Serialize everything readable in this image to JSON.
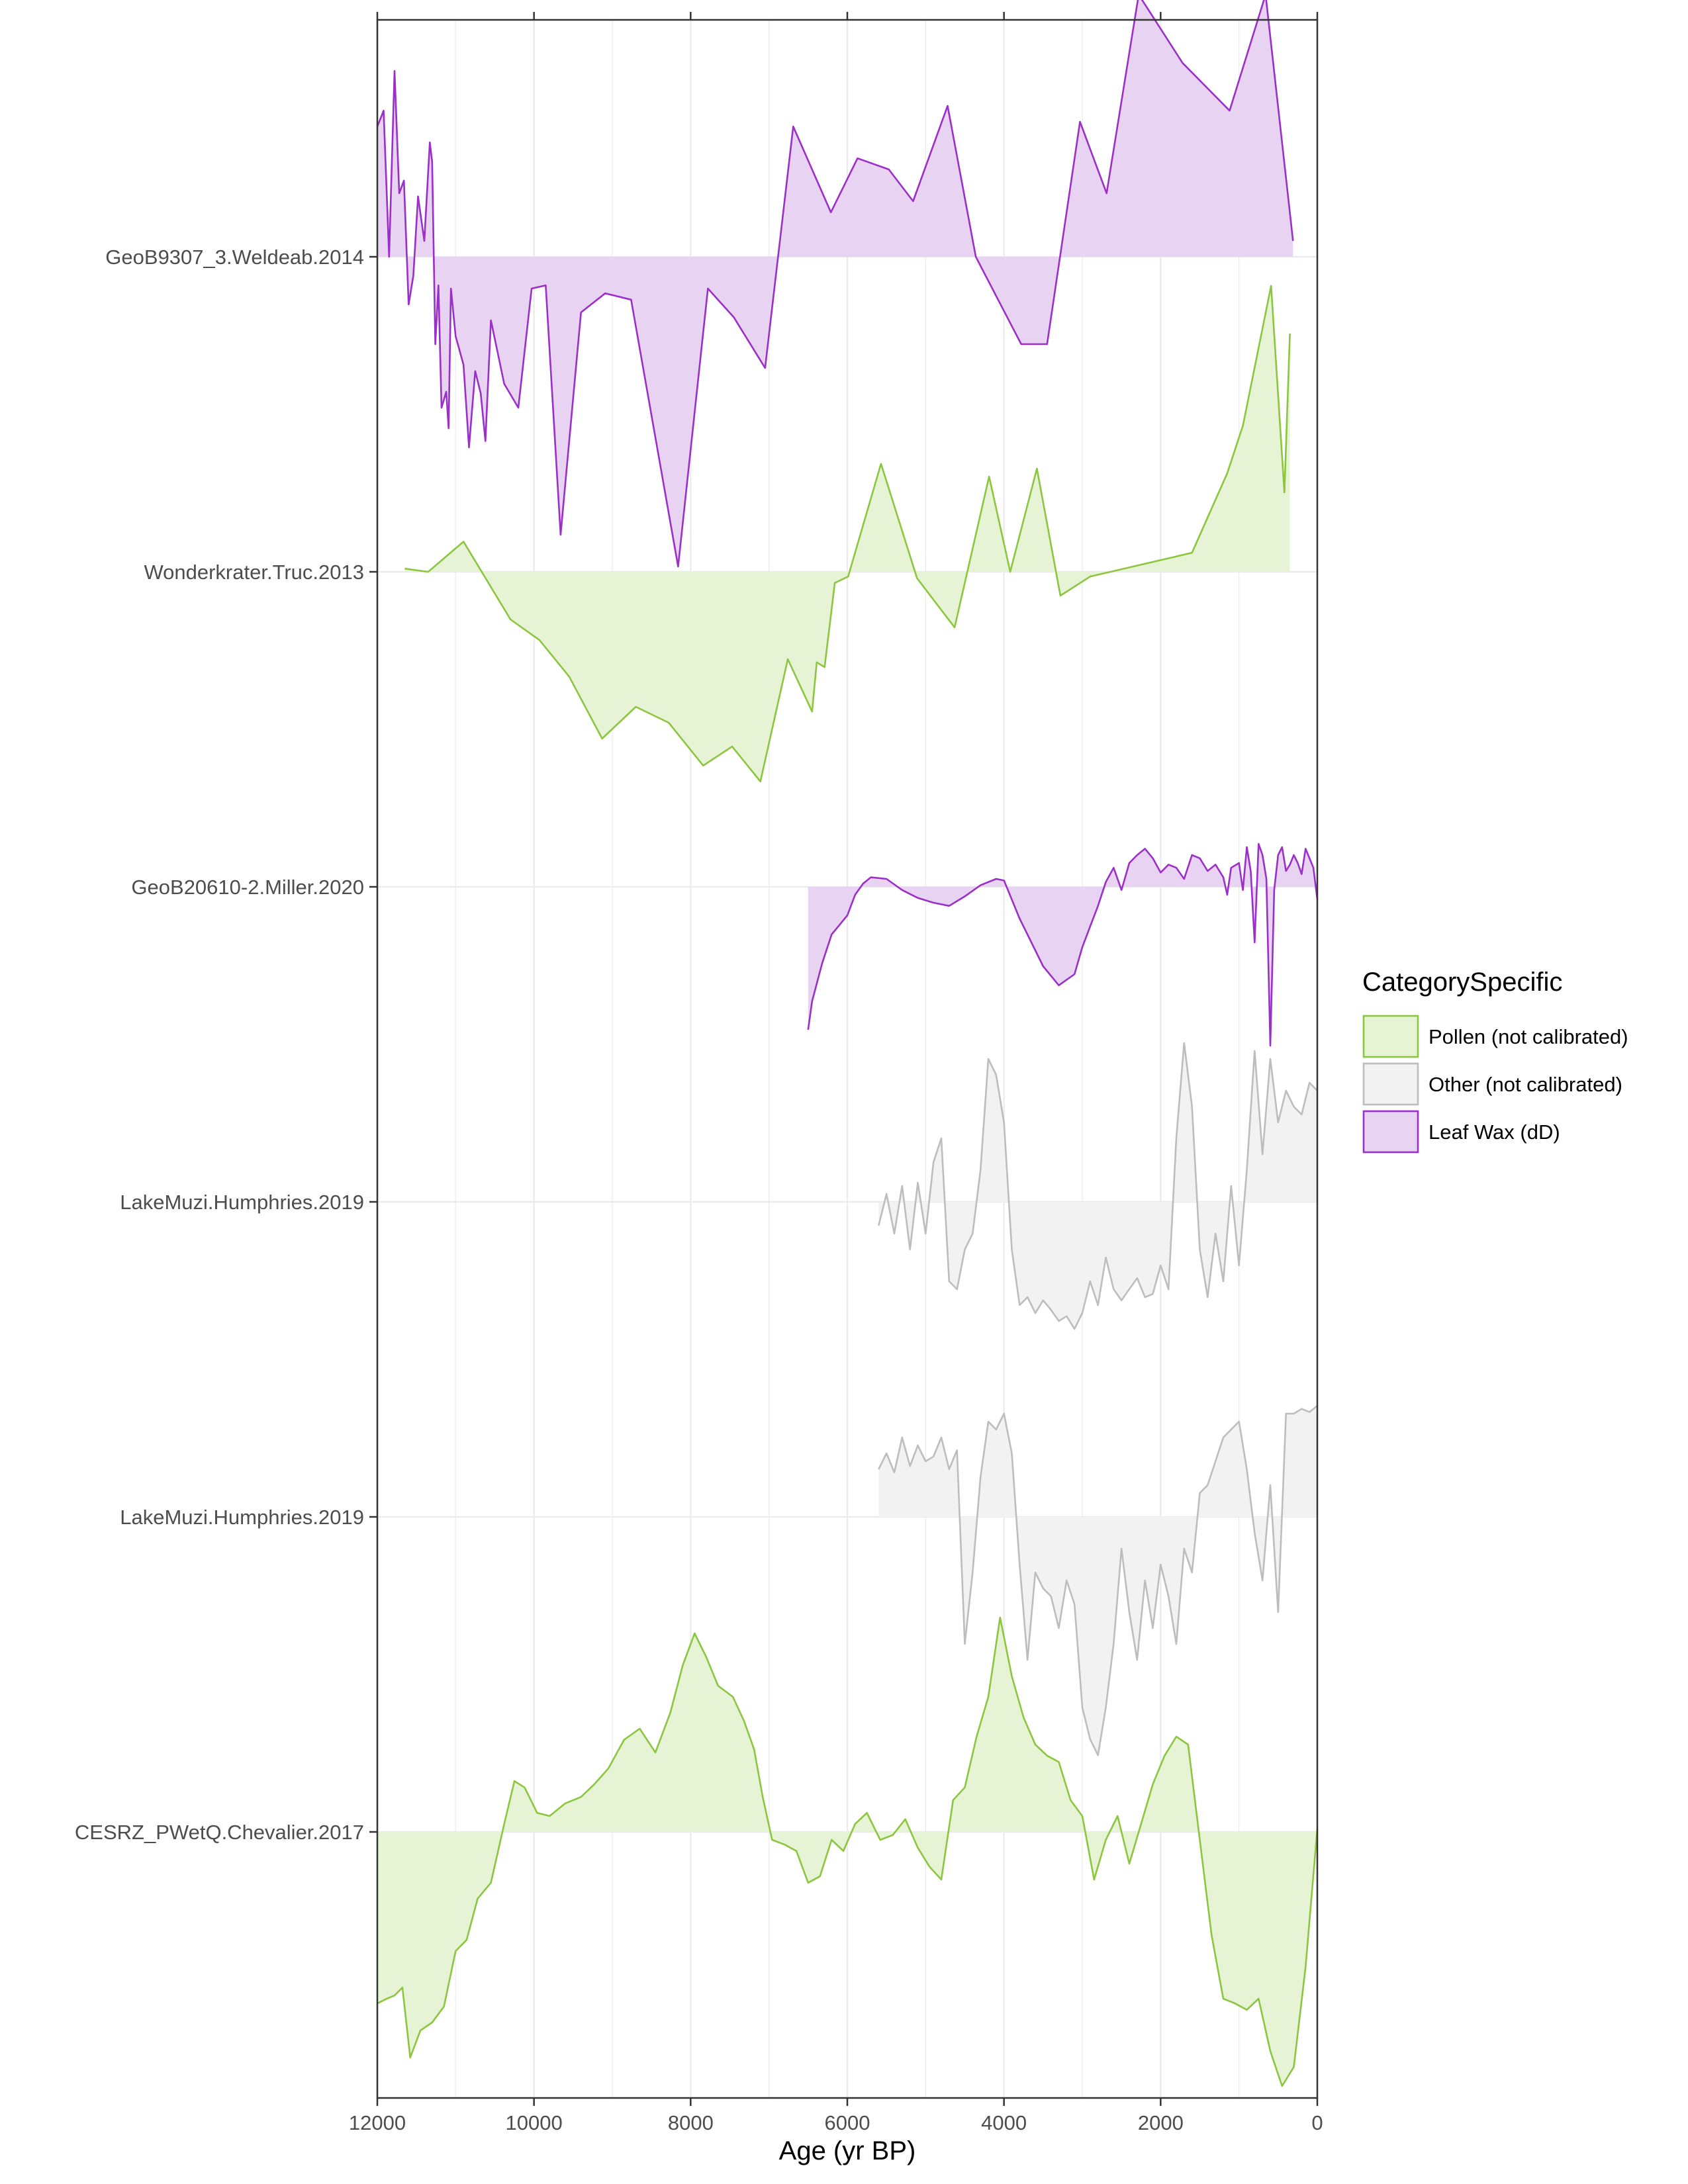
{
  "chart_data": {
    "type": "area",
    "xlabel": "Age (yr BP)",
    "xlim": [
      12000,
      0
    ],
    "x_ticks": [
      12000,
      10000,
      8000,
      6000,
      4000,
      2000,
      0
    ],
    "x_tick_labels": [
      "12000",
      "10000",
      "8000",
      "6000",
      "4000",
      "2000",
      "0"
    ],
    "grid": true,
    "legend": {
      "title": "CategorySpecific",
      "position": "right",
      "items": [
        {
          "label": "Pollen (not calibrated)",
          "key": "pollen"
        },
        {
          "label": "Other (not calibrated)",
          "key": "other"
        },
        {
          "label": "Leaf Wax (dD)",
          "key": "leafwax"
        }
      ]
    },
    "colors": {
      "pollen": {
        "line": "#8cc63f",
        "fill": "#e6f3d4"
      },
      "other": {
        "line": "#bdbdbd",
        "fill": "#f2f2f2"
      },
      "leafwax": {
        "line": "#9b2fc9",
        "fill": "#e8d3f3"
      }
    },
    "series": [
      {
        "name": "GeoB9307_3.Weldeab.2014",
        "category": "leafwax",
        "age": [
          12000,
          11920,
          11850,
          11780,
          11720,
          11660,
          11600,
          11540,
          11480,
          11400,
          11330,
          11300,
          11260,
          11220,
          11180,
          11120,
          11090,
          11060,
          11000,
          10900,
          10830,
          10750,
          10680,
          10620,
          10550,
          10380,
          10200,
          10030,
          9850,
          9660,
          9400,
          9090,
          8760,
          8160,
          7780,
          7450,
          7050,
          6690,
          6210,
          5870,
          5470,
          5160,
          4720,
          4360,
          3780,
          3450,
          3030,
          2690,
          2280,
          1720,
          1120,
          660,
          310
        ],
        "value": [
          0.82,
          0.92,
          0.0,
          1.17,
          0.4,
          0.48,
          -0.3,
          -0.12,
          0.38,
          0.1,
          0.72,
          0.6,
          -0.55,
          -0.18,
          -0.95,
          -0.85,
          -1.08,
          -0.2,
          -0.5,
          -0.68,
          -1.2,
          -0.72,
          -0.86,
          -1.16,
          -0.4,
          -0.8,
          -0.95,
          -0.2,
          -0.18,
          -1.75,
          -0.35,
          -0.23,
          -0.27,
          -1.95,
          -0.2,
          -0.38,
          -0.7,
          0.82,
          0.28,
          0.62,
          0.55,
          0.35,
          0.95,
          0.0,
          -0.55,
          -0.55,
          0.85,
          0.4,
          1.65,
          1.22,
          0.92,
          1.65,
          0.1
        ]
      },
      {
        "name": "Wonderkrater.Truc.2013",
        "category": "pollen",
        "age": [
          11650,
          11350,
          10900,
          10300,
          9930,
          9550,
          9130,
          8700,
          8280,
          7840,
          7470,
          7110,
          6760,
          6450,
          6390,
          6290,
          6160,
          5990,
          5570,
          5110,
          4630,
          4190,
          3920,
          3580,
          3280,
          2900,
          1600,
          1150,
          950,
          590,
          420,
          350
        ],
        "value": [
          0.02,
          0.0,
          0.19,
          -0.3,
          -0.43,
          -0.66,
          -1.05,
          -0.85,
          -0.95,
          -1.22,
          -1.1,
          -1.32,
          -0.55,
          -0.88,
          -0.57,
          -0.6,
          -0.07,
          -0.03,
          0.68,
          -0.04,
          -0.35,
          0.6,
          0.0,
          0.65,
          -0.15,
          -0.03,
          0.12,
          0.62,
          0.92,
          1.8,
          0.5,
          1.5
        ]
      },
      {
        "name": "GeoB20610-2.Miller.2020",
        "category": "leafwax",
        "age": [
          6500,
          6450,
          6320,
          6200,
          6000,
          5900,
          5800,
          5700,
          5500,
          5300,
          5100,
          4900,
          4700,
          4500,
          4300,
          4100,
          4000,
          3900,
          3800,
          3700,
          3500,
          3300,
          3100,
          3000,
          2900,
          2800,
          2700,
          2600,
          2500,
          2400,
          2300,
          2200,
          2100,
          2000,
          1900,
          1800,
          1700,
          1600,
          1500,
          1400,
          1300,
          1200,
          1150,
          1100,
          1000,
          950,
          900,
          850,
          800,
          750,
          700,
          650,
          600,
          550,
          500,
          450,
          400,
          350,
          300,
          250,
          200,
          150,
          100,
          50,
          0
        ],
        "value": [
          -0.9,
          -0.72,
          -0.48,
          -0.3,
          -0.18,
          -0.05,
          0.02,
          0.06,
          0.05,
          -0.02,
          -0.07,
          -0.1,
          -0.12,
          -0.06,
          0.01,
          0.05,
          0.04,
          -0.08,
          -0.2,
          -0.3,
          -0.5,
          -0.62,
          -0.55,
          -0.38,
          -0.25,
          -0.12,
          0.03,
          0.12,
          -0.02,
          0.15,
          0.2,
          0.24,
          0.18,
          0.09,
          0.14,
          0.12,
          0.05,
          0.2,
          0.18,
          0.1,
          0.14,
          0.06,
          -0.05,
          0.12,
          0.15,
          -0.02,
          0.25,
          0.1,
          -0.35,
          0.27,
          0.2,
          0.05,
          -1.0,
          -0.02,
          0.2,
          0.25,
          0.1,
          0.14,
          0.2,
          0.15,
          0.08,
          0.24,
          0.18,
          0.12,
          -0.08
        ]
      },
      {
        "name": "LakeMuzi.Humphries.2019",
        "category": "other",
        "age": [
          5600,
          5500,
          5400,
          5300,
          5200,
          5100,
          5000,
          4900,
          4800,
          4700,
          4600,
          4500,
          4400,
          4300,
          4200,
          4100,
          4000,
          3900,
          3800,
          3700,
          3600,
          3500,
          3400,
          3300,
          3200,
          3100,
          3000,
          2900,
          2800,
          2700,
          2600,
          2500,
          2400,
          2300,
          2200,
          2100,
          2000,
          1900,
          1800,
          1700,
          1600,
          1500,
          1400,
          1300,
          1200,
          1100,
          1000,
          900,
          800,
          700,
          600,
          500,
          400,
          300,
          200,
          100,
          0
        ],
        "value": [
          -0.15,
          0.05,
          -0.2,
          0.1,
          -0.3,
          0.12,
          -0.2,
          0.25,
          0.4,
          -0.5,
          -0.55,
          -0.3,
          -0.2,
          0.2,
          0.9,
          0.8,
          0.5,
          -0.3,
          -0.65,
          -0.6,
          -0.7,
          -0.62,
          -0.68,
          -0.75,
          -0.72,
          -0.8,
          -0.7,
          -0.5,
          -0.65,
          -0.35,
          -0.55,
          -0.62,
          -0.55,
          -0.48,
          -0.6,
          -0.58,
          -0.4,
          -0.55,
          0.4,
          1.0,
          0.6,
          -0.3,
          -0.6,
          -0.2,
          -0.5,
          0.1,
          -0.4,
          0.2,
          0.95,
          0.3,
          0.9,
          0.5,
          0.7,
          0.6,
          0.55,
          0.75,
          0.7
        ]
      },
      {
        "name": "LakeMuzi.Humphries.2019",
        "category": "other",
        "age": [
          5600,
          5500,
          5400,
          5300,
          5200,
          5100,
          5000,
          4900,
          4800,
          4700,
          4600,
          4500,
          4400,
          4300,
          4200,
          4100,
          4000,
          3900,
          3800,
          3700,
          3600,
          3500,
          3400,
          3300,
          3200,
          3100,
          3000,
          2900,
          2800,
          2700,
          2600,
          2500,
          2400,
          2300,
          2200,
          2100,
          2000,
          1900,
          1800,
          1700,
          1600,
          1500,
          1400,
          1300,
          1200,
          1100,
          1000,
          900,
          800,
          700,
          600,
          500,
          400,
          300,
          200,
          100,
          0
        ],
        "value": [
          0.3,
          0.4,
          0.28,
          0.5,
          0.32,
          0.45,
          0.35,
          0.38,
          0.5,
          0.3,
          0.42,
          -0.8,
          -0.35,
          0.25,
          0.6,
          0.55,
          0.65,
          0.4,
          -0.3,
          -0.9,
          -0.35,
          -0.45,
          -0.5,
          -0.7,
          -0.4,
          -0.55,
          -1.2,
          -1.4,
          -1.5,
          -1.2,
          -0.8,
          -0.2,
          -0.6,
          -0.9,
          -0.4,
          -0.7,
          -0.3,
          -0.5,
          -0.8,
          -0.2,
          -0.35,
          0.15,
          0.2,
          0.35,
          0.5,
          0.55,
          0.6,
          0.3,
          -0.1,
          -0.4,
          0.2,
          -0.6,
          0.65,
          0.65,
          0.68,
          0.66,
          0.7
        ]
      },
      {
        "name": "CESRZ_PWetQ.Chevalier.2017",
        "category": "pollen",
        "age": [
          12000,
          11880,
          11780,
          11680,
          11580,
          11450,
          11300,
          11150,
          11000,
          10860,
          10720,
          10550,
          10380,
          10250,
          10120,
          9960,
          9800,
          9600,
          9400,
          9230,
          9050,
          8850,
          8650,
          8450,
          8260,
          8100,
          7950,
          7800,
          7650,
          7460,
          7320,
          7190,
          7080,
          6960,
          6800,
          6650,
          6500,
          6350,
          6200,
          6050,
          5900,
          5750,
          5580,
          5420,
          5260,
          5100,
          4950,
          4800,
          4650,
          4500,
          4350,
          4200,
          4050,
          3900,
          3750,
          3600,
          3450,
          3300,
          3150,
          3000,
          2850,
          2700,
          2550,
          2400,
          2250,
          2100,
          1950,
          1800,
          1650,
          1500,
          1350,
          1200,
          1050,
          900,
          750,
          600,
          450,
          300,
          150,
          0
        ],
        "value": [
          -1.08,
          -1.05,
          -1.03,
          -0.98,
          -1.42,
          -1.25,
          -1.2,
          -1.1,
          -0.75,
          -0.68,
          -0.42,
          -0.32,
          0.05,
          0.32,
          0.28,
          0.12,
          0.1,
          0.18,
          0.22,
          0.3,
          0.4,
          0.58,
          0.65,
          0.5,
          0.75,
          1.05,
          1.25,
          1.1,
          0.92,
          0.85,
          0.7,
          0.52,
          0.22,
          -0.05,
          -0.08,
          -0.12,
          -0.32,
          -0.28,
          -0.05,
          -0.12,
          0.05,
          0.12,
          -0.05,
          -0.02,
          0.08,
          -0.1,
          -0.22,
          -0.3,
          0.2,
          0.28,
          0.6,
          0.85,
          1.35,
          0.98,
          0.72,
          0.55,
          0.48,
          0.44,
          0.2,
          0.1,
          -0.3,
          -0.05,
          0.1,
          -0.2,
          0.05,
          0.3,
          0.48,
          0.6,
          0.55,
          -0.05,
          -0.65,
          -1.05,
          -1.08,
          -1.12,
          -1.05,
          -1.38,
          -1.6,
          -1.48,
          -0.85,
          0.02
        ]
      }
    ]
  }
}
